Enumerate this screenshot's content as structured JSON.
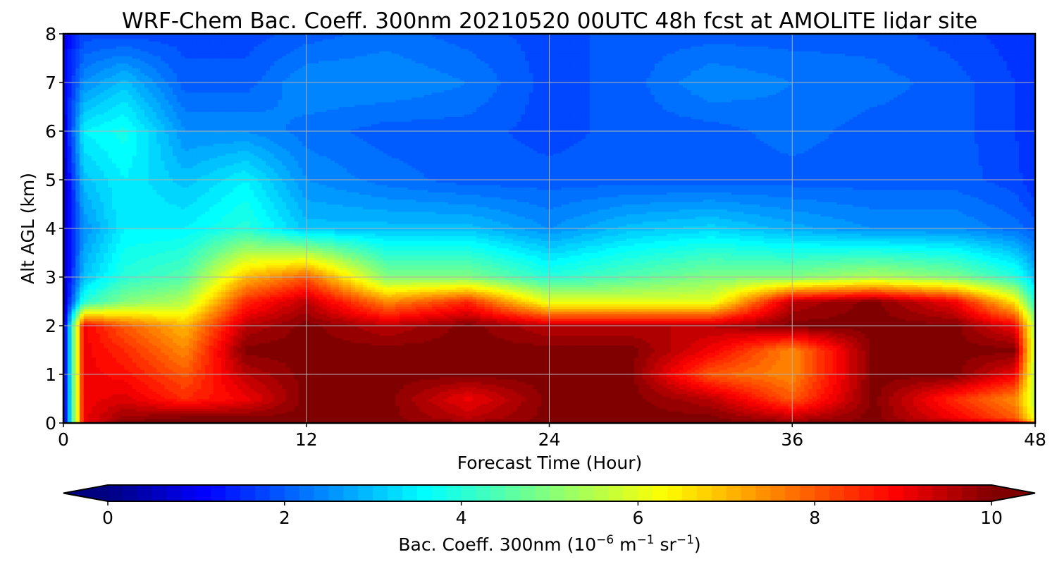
{
  "chart_data": {
    "type": "heatmap",
    "title": "WRF-Chem Bac. Coeff. 300nm  20210520 00UTC 48h fcst at AMOLITE lidar site",
    "xlabel": "Forecast Time (Hour)",
    "ylabel": "Alt AGL (km)",
    "xlim": [
      0,
      48
    ],
    "ylim": [
      0,
      8
    ],
    "x_ticks": [
      "0",
      "12",
      "24",
      "36",
      "48"
    ],
    "y_ticks": [
      "0",
      "1",
      "2",
      "3",
      "4",
      "5",
      "6",
      "7",
      "8"
    ],
    "grid": true,
    "colorbar": {
      "label_prefix": "Bac. Coeff. 300nm  (10",
      "label_exp1": "−6",
      "label_mid": " m",
      "label_exp2": "−1",
      "label_mid2": " sr",
      "label_exp3": "−1",
      "label_suffix": ")",
      "range": [
        0,
        10
      ],
      "ticks": [
        "0",
        "2",
        "4",
        "6",
        "8",
        "10"
      ],
      "extend": "both",
      "colormap": "jet",
      "colors": [
        "#000080",
        "#0000ff",
        "#00ffff",
        "#ffff00",
        "#ff0000",
        "#800000"
      ]
    },
    "x": [
      0,
      1,
      3,
      6,
      9,
      12,
      16,
      20,
      24,
      28,
      32,
      36,
      40,
      44,
      47,
      48
    ],
    "y": [
      0,
      0.1,
      0.5,
      1,
      1.5,
      2,
      2.5,
      3,
      4,
      5,
      6,
      7,
      8
    ],
    "values": [
      [
        0.5,
        9.0,
        10,
        10,
        10,
        10,
        10,
        10,
        10,
        10,
        10,
        10,
        10,
        10,
        9.5,
        8.0
      ],
      [
        0.5,
        9.0,
        9.8,
        10,
        10,
        10,
        10,
        9.5,
        10,
        10,
        10,
        9.5,
        10,
        9.0,
        8.0,
        6.0
      ],
      [
        0.5,
        9.0,
        9.2,
        8.5,
        9.0,
        10,
        10,
        9.0,
        10,
        10,
        9.5,
        8.0,
        10,
        8.5,
        7.5,
        5.5
      ],
      [
        0.5,
        9.0,
        8.8,
        8.0,
        9.5,
        10,
        10,
        10,
        10,
        10,
        8.0,
        7.5,
        10,
        10,
        9.0,
        5.5
      ],
      [
        0.5,
        9.0,
        8.5,
        7.5,
        10,
        10,
        10,
        10,
        10,
        10,
        9.0,
        7.5,
        10,
        10,
        10,
        5.5
      ],
      [
        0.5,
        9.0,
        8.0,
        7.0,
        9.5,
        10,
        9.5,
        10,
        9.5,
        9.5,
        9.5,
        10,
        10,
        10,
        9.0,
        5.5
      ],
      [
        0.5,
        4.0,
        5.0,
        5.5,
        8.5,
        9.5,
        7.5,
        8.5,
        6.0,
        6.0,
        6.0,
        9.5,
        10,
        9.0,
        6.5,
        4.0
      ],
      [
        0.5,
        3.0,
        4.0,
        4.5,
        7.0,
        8.0,
        5.0,
        5.0,
        4.0,
        4.5,
        5.0,
        5.0,
        5.5,
        5.0,
        4.0,
        3.0
      ],
      [
        0.5,
        2.5,
        3.5,
        3.5,
        4.0,
        3.0,
        3.0,
        3.0,
        2.5,
        3.0,
        3.2,
        2.8,
        2.5,
        2.5,
        2.2,
        2.0
      ],
      [
        0.5,
        3.0,
        3.5,
        3.0,
        3.5,
        2.5,
        2.2,
        2.0,
        2.0,
        2.0,
        2.0,
        2.0,
        2.0,
        2.0,
        1.8,
        1.5
      ],
      [
        0.8,
        3.5,
        3.8,
        2.5,
        2.5,
        2.2,
        2.0,
        2.0,
        1.8,
        2.0,
        2.0,
        2.2,
        2.0,
        2.0,
        1.7,
        1.5
      ],
      [
        1.0,
        2.5,
        3.0,
        2.0,
        2.0,
        2.5,
        2.5,
        2.3,
        1.8,
        2.0,
        2.5,
        2.3,
        2.2,
        2.0,
        1.7,
        1.5
      ],
      [
        1.0,
        1.8,
        1.8,
        1.8,
        1.8,
        2.0,
        2.2,
        2.0,
        1.8,
        2.0,
        2.0,
        2.0,
        2.0,
        1.8,
        1.6,
        1.5
      ]
    ]
  }
}
